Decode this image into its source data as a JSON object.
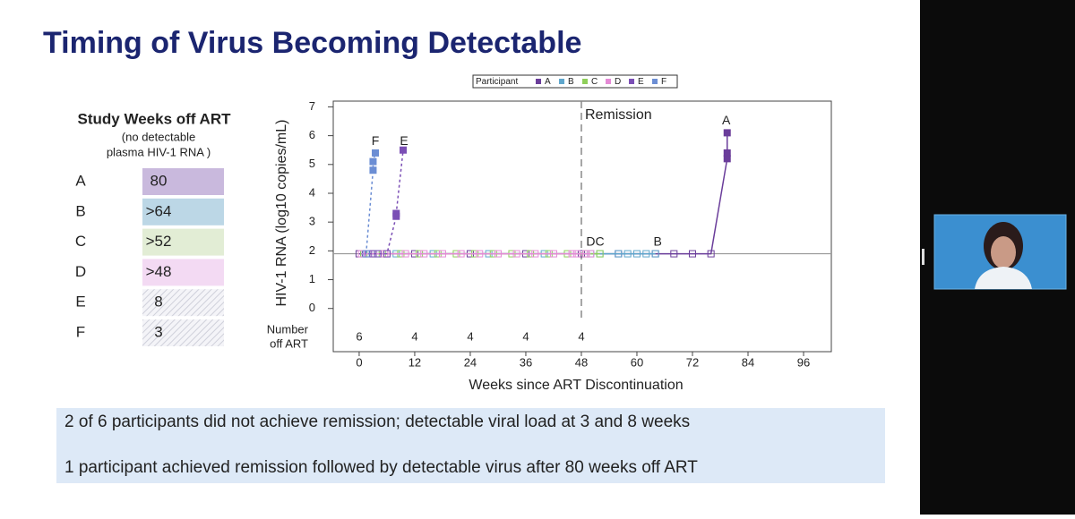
{
  "slide": {
    "title": "Timing of Virus Becoming Detectable",
    "table": {
      "title": "Study Weeks off ART",
      "subtitle": [
        "(no detectable",
        "plasma HIV-1 RNA )"
      ],
      "rows": [
        [
          "A",
          "80"
        ],
        [
          "B",
          ">64"
        ],
        [
          "C",
          ">52"
        ],
        [
          "D",
          ">48"
        ],
        [
          "E",
          "8"
        ],
        [
          "F",
          "3"
        ]
      ],
      "fills": [
        "#c9b9dd",
        "#bcd7e6",
        "#e2edd5",
        "#f3daf3",
        "#ececf2",
        "#e6ecf4"
      ],
      "hatched": [
        false,
        false,
        false,
        false,
        true,
        true
      ]
    },
    "notes": [
      "2 of 6 participants did not achieve remission; detectable viral load at 3 and 8 weeks",
      "1 participant achieved remission followed by detectable virus after 80 weeks off ART"
    ]
  },
  "chart_data": {
    "type": "line",
    "xlabel": "Weeks since ART Discontinuation",
    "ylabel": "HIV-1 RNA (log10 copies/mL)",
    "xlim": [
      -5.6,
      102
    ],
    "ylim": [
      -1.5,
      7.2
    ],
    "xticks": [
      0,
      12,
      24,
      36,
      48,
      60,
      72,
      84,
      96
    ],
    "yticks": [
      0,
      1,
      2,
      3,
      4,
      5,
      6,
      7
    ],
    "legend_title": "Participant",
    "detection_limit": 1.9,
    "remission": {
      "x": 48,
      "label": "Remission"
    },
    "number_off_art": {
      "label": [
        "Number",
        "off ART"
      ],
      "x": [
        0,
        12,
        24,
        36,
        48
      ],
      "values": [
        6,
        4,
        4,
        4,
        4
      ]
    },
    "series": [
      {
        "name": "A",
        "color": "#6a3d9a",
        "dashed": false,
        "x": [
          0,
          3,
          6,
          12,
          24,
          36,
          48,
          56,
          64,
          68,
          72,
          76,
          79.5,
          79.5,
          79.5
        ],
        "values": [
          1.9,
          1.9,
          1.9,
          1.9,
          1.9,
          1.9,
          1.9,
          1.9,
          1.9,
          1.9,
          1.9,
          1.9,
          5.2,
          5.4,
          6.1
        ]
      },
      {
        "name": "B",
        "color": "#5fa6cc",
        "dashed": false,
        "x": [
          1,
          4,
          8,
          16,
          28,
          40,
          50,
          52,
          56,
          58,
          60,
          62,
          64
        ],
        "values": [
          1.9,
          1.9,
          1.9,
          1.9,
          1.9,
          1.9,
          1.9,
          1.9,
          1.9,
          1.9,
          1.9,
          1.9,
          1.9
        ]
      },
      {
        "name": "C",
        "color": "#8fcf5a",
        "dashed": false,
        "x": [
          1,
          5,
          9,
          13,
          17,
          21,
          25,
          29,
          33,
          37,
          41,
          45,
          49,
          52
        ],
        "values": [
          1.9,
          1.9,
          1.9,
          1.9,
          1.9,
          1.9,
          1.9,
          1.9,
          1.9,
          1.9,
          1.9,
          1.9,
          1.9,
          1.9
        ]
      },
      {
        "name": "D",
        "color": "#e58ad6",
        "dashed": false,
        "x": [
          0.5,
          5.5,
          10,
          14,
          18,
          22,
          26,
          30,
          34,
          38,
          42,
          46,
          47,
          49,
          50
        ],
        "values": [
          1.9,
          1.9,
          1.9,
          1.9,
          1.9,
          1.9,
          1.9,
          1.9,
          1.9,
          1.9,
          1.9,
          1.9,
          1.9,
          1.9,
          1.9
        ]
      },
      {
        "name": "E",
        "color": "#7b4fb5",
        "dashed": true,
        "x": [
          2,
          4,
          6,
          8,
          8,
          9.5
        ],
        "values": [
          1.9,
          1.9,
          1.9,
          3.2,
          3.3,
          5.5
        ]
      },
      {
        "name": "F",
        "color": "#6c8ed4",
        "dashed": true,
        "x": [
          1.5,
          3,
          3,
          3.5
        ],
        "values": [
          1.9,
          4.8,
          5.1,
          5.4
        ]
      }
    ],
    "annotations": [
      {
        "text": "F",
        "x": 3.5,
        "y": 5.8
      },
      {
        "text": "E",
        "x": 9.7,
        "y": 5.8
      },
      {
        "text": "A",
        "x": 79.3,
        "y": 6.5
      },
      {
        "text": "DC",
        "x": 51,
        "y": 2.3
      },
      {
        "text": "B",
        "x": 64.5,
        "y": 2.3
      }
    ]
  }
}
